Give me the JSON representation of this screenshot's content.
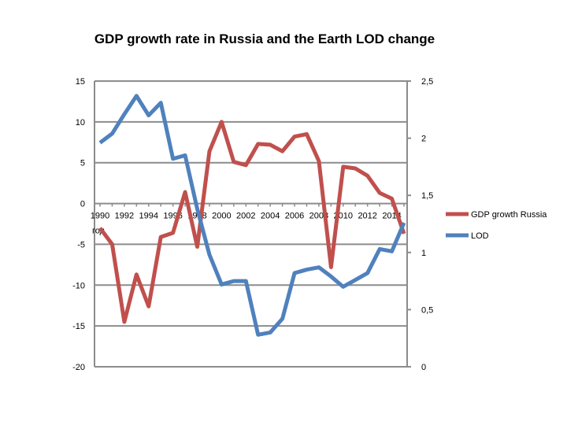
{
  "chart_data": {
    "type": "line",
    "title": "GDP growth rate in Russia and the Earth LOD change",
    "xlabel": "год",
    "x": [
      1990,
      1991,
      1992,
      1993,
      1994,
      1995,
      1996,
      1997,
      1998,
      1999,
      2000,
      2001,
      2002,
      2003,
      2004,
      2005,
      2006,
      2007,
      2008,
      2009,
      2010,
      2011,
      2012,
      2013,
      2014,
      2015
    ],
    "x_tick_labels": [
      "1990",
      "1992",
      "1994",
      "1996",
      "1998",
      "2000",
      "2002",
      "2004",
      "2006",
      "2008",
      "2010",
      "2012",
      "2014"
    ],
    "y_left": {
      "ylim": [
        -20,
        15
      ],
      "tick_labels": [
        "15",
        "10",
        "5",
        "0",
        "-5",
        "-10",
        "-15",
        "-20"
      ]
    },
    "y_right": {
      "ylim": [
        0,
        2.5
      ],
      "tick_labels": [
        "2,5",
        "2",
        "1,5",
        "1",
        "0,5",
        "0"
      ]
    },
    "grid": true,
    "legend_position": "right",
    "series": [
      {
        "name": "GDP growth Russia",
        "axis": "left",
        "color": "#C0504D",
        "values": [
          -3.0,
          -5.0,
          -14.5,
          -8.7,
          -12.6,
          -4.1,
          -3.6,
          1.4,
          -5.3,
          6.4,
          10.0,
          5.1,
          4.7,
          7.3,
          7.2,
          6.4,
          8.2,
          8.5,
          5.2,
          -7.8,
          4.5,
          4.3,
          3.4,
          1.3,
          0.6,
          -3.7
        ]
      },
      {
        "name": "LOD",
        "axis": "right",
        "color": "#4F81BD",
        "values": [
          1.96,
          2.04,
          2.21,
          2.37,
          2.2,
          2.31,
          1.82,
          1.85,
          1.38,
          0.98,
          0.72,
          0.75,
          0.75,
          0.28,
          0.3,
          0.42,
          0.82,
          0.85,
          0.87,
          0.79,
          0.7,
          0.76,
          0.82,
          1.03,
          1.01,
          1.26
        ]
      }
    ]
  }
}
